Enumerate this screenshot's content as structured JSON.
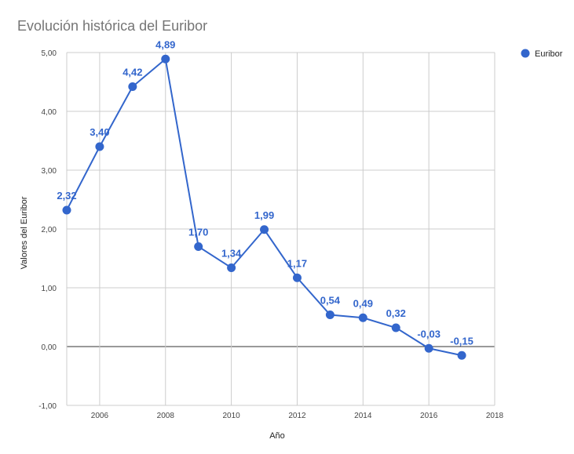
{
  "chart_data": {
    "type": "line",
    "title": "Evolución histórica del Euribor",
    "xlabel": "Año",
    "ylabel": "Valores del Euribor",
    "x": [
      2005,
      2006,
      2007,
      2008,
      2009,
      2010,
      2011,
      2012,
      2013,
      2014,
      2015,
      2016,
      2017
    ],
    "series": [
      {
        "name": "Euribor",
        "color": "#3366cc",
        "values": [
          2.32,
          3.4,
          4.42,
          4.89,
          1.7,
          1.34,
          1.99,
          1.17,
          0.54,
          0.49,
          0.32,
          -0.03,
          -0.15
        ],
        "labels": [
          "2,32",
          "3,40",
          "4,42",
          "4,89",
          "1,70",
          "1,34",
          "1,99",
          "1,17",
          "0,54",
          "0,49",
          "0,32",
          "-0,03",
          "-0,15"
        ]
      }
    ],
    "xlim": [
      2005,
      2018
    ],
    "ylim": [
      -1,
      5
    ],
    "x_ticks": [
      2006,
      2008,
      2010,
      2012,
      2014,
      2016,
      2018
    ],
    "x_tick_labels": [
      "2006",
      "2008",
      "2010",
      "2012",
      "2014",
      "2016",
      "2018"
    ],
    "y_ticks": [
      -1,
      0,
      1,
      2,
      3,
      4,
      5
    ],
    "y_tick_labels": [
      "-1,00",
      "0,00",
      "1,00",
      "2,00",
      "3,00",
      "4,00",
      "5,00"
    ],
    "grid": true,
    "legend_position": "top-right"
  }
}
